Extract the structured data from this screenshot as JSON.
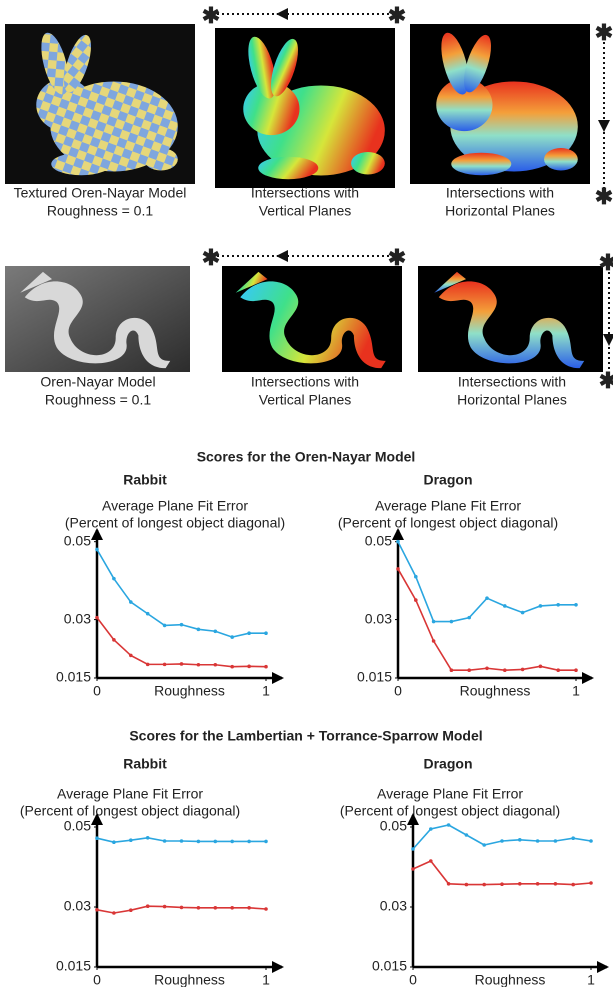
{
  "panels": [
    {
      "caption": [
        "Textured Oren-Nayar Model",
        "Roughness = 0.1"
      ]
    },
    {
      "caption": [
        "Intersections with",
        "Vertical Planes"
      ]
    },
    {
      "caption": [
        "Intersections with",
        "Horizontal Planes"
      ]
    },
    {
      "caption": [
        "Oren-Nayar Model",
        "Roughness = 0.1"
      ]
    },
    {
      "caption": [
        "Intersections with",
        "Vertical Planes"
      ]
    },
    {
      "caption": [
        "Intersections with",
        "Horizontal Planes"
      ]
    }
  ],
  "sections": [
    "Scores for the Oren-Nayar Model",
    "Scores for the Lambertian + Torrance-Sparrow Model"
  ],
  "chart_data": [
    {
      "type": "line",
      "title": "Rabbit",
      "ylabel": [
        "Average Plane Fit Error",
        "(Percent of longest object diagonal)"
      ],
      "xlabel": "Roughness",
      "x": [
        0,
        0.1,
        0.2,
        0.3,
        0.4,
        0.5,
        0.6,
        0.7,
        0.8,
        0.9,
        1
      ],
      "xlim": [
        0,
        1
      ],
      "xticks": [
        0,
        1
      ],
      "ylim": [
        0.015,
        0.053
      ],
      "yticks": [
        0.015,
        0.03,
        0.05
      ],
      "series": [
        {
          "color": "#2aa6e0",
          "values": [
            0.048,
            0.0405,
            0.0345,
            0.0315,
            0.0285,
            0.0287,
            0.0275,
            0.027,
            0.0255,
            0.0265,
            0.0265
          ]
        },
        {
          "color": "#d93636",
          "values": [
            0.0305,
            0.0248,
            0.0208,
            0.0185,
            0.0185,
            0.0186,
            0.0184,
            0.0184,
            0.0179,
            0.018,
            0.0179
          ]
        }
      ]
    },
    {
      "type": "line",
      "title": "Dragon",
      "ylabel": [
        "Average Plane Fit Error",
        "(Percent of longest object diagonal)"
      ],
      "xlabel": "Roughness",
      "x": [
        0,
        0.1,
        0.2,
        0.3,
        0.4,
        0.5,
        0.6,
        0.7,
        0.8,
        0.9,
        1
      ],
      "xlim": [
        0,
        1
      ],
      "xticks": [
        0,
        1
      ],
      "ylim": [
        0.015,
        0.053
      ],
      "yticks": [
        0.015,
        0.03,
        0.05
      ],
      "series": [
        {
          "color": "#2aa6e0",
          "values": [
            0.05,
            0.041,
            0.0295,
            0.0295,
            0.0305,
            0.0355,
            0.0335,
            0.0318,
            0.0335,
            0.0338,
            0.0338
          ]
        },
        {
          "color": "#d93636",
          "values": [
            0.043,
            0.035,
            0.0245,
            0.017,
            0.017,
            0.0175,
            0.017,
            0.0172,
            0.018,
            0.017,
            0.017
          ]
        }
      ]
    },
    {
      "type": "line",
      "title": "Rabbit",
      "ylabel": [
        "Average Plane Fit Error",
        "(Percent of longest object diagonal)"
      ],
      "xlabel": "Roughness",
      "x": [
        0,
        0.1,
        0.2,
        0.3,
        0.4,
        0.5,
        0.6,
        0.7,
        0.8,
        0.9,
        1
      ],
      "xlim": [
        0,
        1
      ],
      "xticks": [
        0,
        1
      ],
      "ylim": [
        0.015,
        0.053
      ],
      "yticks": [
        0.015,
        0.03,
        0.05
      ],
      "series": [
        {
          "color": "#2aa6e0",
          "values": [
            0.0472,
            0.0462,
            0.0467,
            0.0473,
            0.0465,
            0.0465,
            0.0464,
            0.0464,
            0.0464,
            0.0464,
            0.0464
          ]
        },
        {
          "color": "#d93636",
          "values": [
            0.0293,
            0.0285,
            0.0292,
            0.0302,
            0.0301,
            0.0299,
            0.0298,
            0.0298,
            0.0298,
            0.0298,
            0.0295
          ]
        }
      ]
    },
    {
      "type": "line",
      "title": "Dragon",
      "ylabel": [
        "Average Plane Fit Error",
        "(Percent of longest object diagonal)"
      ],
      "xlabel": "Roughness",
      "x": [
        0,
        0.1,
        0.2,
        0.3,
        0.4,
        0.5,
        0.6,
        0.7,
        0.8,
        0.9,
        1
      ],
      "xlim": [
        0,
        1
      ],
      "xticks": [
        0,
        1
      ],
      "ylim": [
        0.015,
        0.053
      ],
      "yticks": [
        0.015,
        0.03,
        0.05
      ],
      "series": [
        {
          "color": "#2aa6e0",
          "values": [
            0.0445,
            0.0495,
            0.0505,
            0.048,
            0.0455,
            0.0465,
            0.0468,
            0.0465,
            0.0465,
            0.0472,
            0.0465
          ]
        },
        {
          "color": "#d93636",
          "values": [
            0.0395,
            0.0415,
            0.0358,
            0.0356,
            0.0356,
            0.0357,
            0.0358,
            0.0358,
            0.0358,
            0.0356,
            0.036
          ]
        }
      ]
    }
  ]
}
